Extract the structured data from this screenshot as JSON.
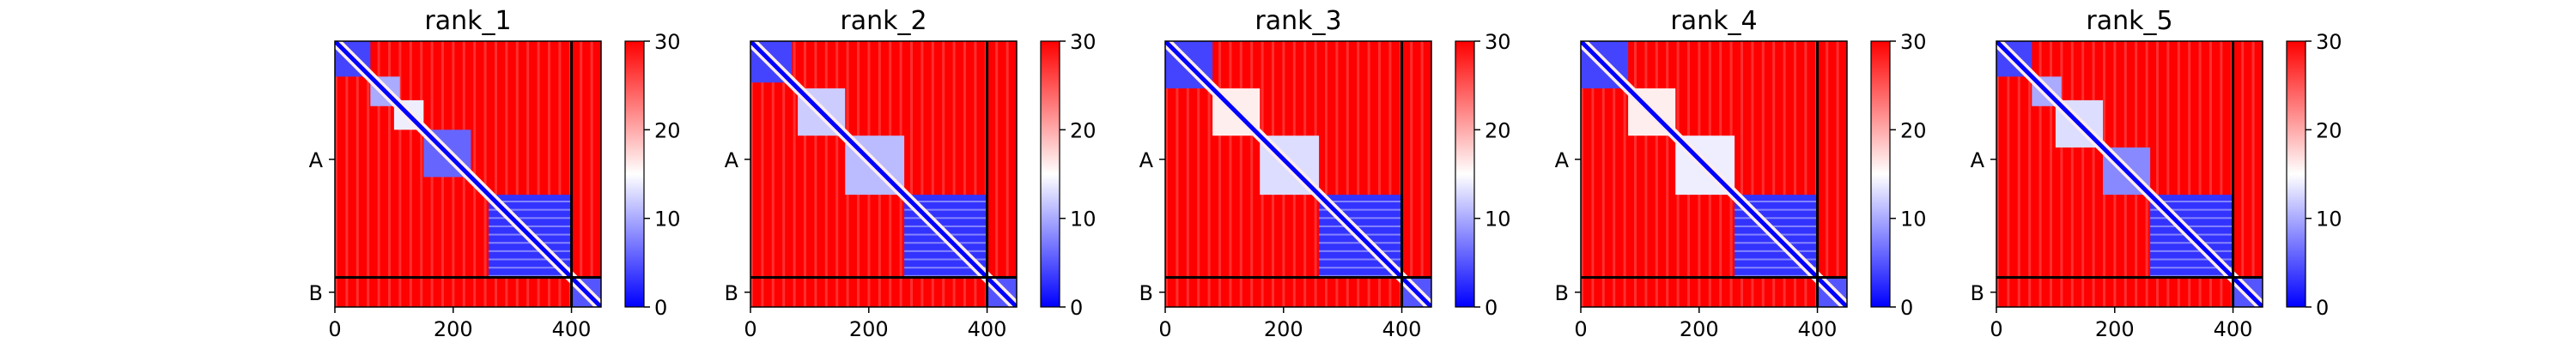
{
  "chart_data": [
    {
      "type": "heatmap",
      "title": "rank_1",
      "xlim": [
        0,
        450
      ],
      "x_ticks": [
        0,
        200,
        400
      ],
      "y_tick_labels": [
        "A",
        "B"
      ],
      "chain_boundary": 400,
      "colorbar": {
        "range": [
          0,
          30
        ],
        "ticks": [
          0,
          10,
          20,
          30
        ],
        "colormap": [
          "#0000ff",
          "#ffffff",
          "#ff0000"
        ]
      },
      "blocks": [
        {
          "i0": 0,
          "i1": 60,
          "value": 4
        },
        {
          "i0": 60,
          "i1": 110,
          "value": 10
        },
        {
          "i0": 100,
          "i1": 150,
          "value": 14
        },
        {
          "i0": 150,
          "i1": 230,
          "value": 6
        },
        {
          "i0": 260,
          "i1": 400,
          "value": 3
        },
        {
          "i0": 400,
          "i1": 450,
          "value": 5
        }
      ]
    },
    {
      "type": "heatmap",
      "title": "rank_2",
      "xlim": [
        0,
        450
      ],
      "x_ticks": [
        0,
        200,
        400
      ],
      "y_tick_labels": [
        "A",
        "B"
      ],
      "chain_boundary": 400,
      "colorbar": {
        "range": [
          0,
          30
        ],
        "ticks": [
          0,
          10,
          20,
          30
        ],
        "colormap": [
          "#0000ff",
          "#ffffff",
          "#ff0000"
        ]
      },
      "blocks": [
        {
          "i0": 0,
          "i1": 70,
          "value": 4
        },
        {
          "i0": 80,
          "i1": 160,
          "value": 12
        },
        {
          "i0": 160,
          "i1": 260,
          "value": 11
        },
        {
          "i0": 260,
          "i1": 400,
          "value": 3
        },
        {
          "i0": 400,
          "i1": 450,
          "value": 5
        }
      ]
    },
    {
      "type": "heatmap",
      "title": "rank_3",
      "xlim": [
        0,
        450
      ],
      "x_ticks": [
        0,
        200,
        400
      ],
      "y_tick_labels": [
        "A",
        "B"
      ],
      "chain_boundary": 400,
      "colorbar": {
        "range": [
          0,
          30
        ],
        "ticks": [
          0,
          10,
          20,
          30
        ],
        "colormap": [
          "#0000ff",
          "#ffffff",
          "#ff0000"
        ]
      },
      "blocks": [
        {
          "i0": 0,
          "i1": 80,
          "value": 4
        },
        {
          "i0": 80,
          "i1": 160,
          "value": 16
        },
        {
          "i0": 160,
          "i1": 260,
          "value": 13
        },
        {
          "i0": 260,
          "i1": 400,
          "value": 3
        },
        {
          "i0": 400,
          "i1": 450,
          "value": 5
        }
      ]
    },
    {
      "type": "heatmap",
      "title": "rank_4",
      "xlim": [
        0,
        450
      ],
      "x_ticks": [
        0,
        200,
        400
      ],
      "y_tick_labels": [
        "A",
        "B"
      ],
      "chain_boundary": 400,
      "colorbar": {
        "range": [
          0,
          30
        ],
        "ticks": [
          0,
          10,
          20,
          30
        ],
        "colormap": [
          "#0000ff",
          "#ffffff",
          "#ff0000"
        ]
      },
      "blocks": [
        {
          "i0": 0,
          "i1": 80,
          "value": 4
        },
        {
          "i0": 80,
          "i1": 160,
          "value": 16
        },
        {
          "i0": 160,
          "i1": 260,
          "value": 14
        },
        {
          "i0": 260,
          "i1": 400,
          "value": 3
        },
        {
          "i0": 400,
          "i1": 450,
          "value": 5
        }
      ]
    },
    {
      "type": "heatmap",
      "title": "rank_5",
      "xlim": [
        0,
        450
      ],
      "x_ticks": [
        0,
        200,
        400
      ],
      "y_tick_labels": [
        "A",
        "B"
      ],
      "chain_boundary": 400,
      "colorbar": {
        "range": [
          0,
          30
        ],
        "ticks": [
          0,
          10,
          20,
          30
        ],
        "colormap": [
          "#0000ff",
          "#ffffff",
          "#ff0000"
        ]
      },
      "blocks": [
        {
          "i0": 0,
          "i1": 60,
          "value": 4
        },
        {
          "i0": 60,
          "i1": 110,
          "value": 10
        },
        {
          "i0": 100,
          "i1": 180,
          "value": 13
        },
        {
          "i0": 180,
          "i1": 260,
          "value": 8
        },
        {
          "i0": 260,
          "i1": 400,
          "value": 3
        },
        {
          "i0": 400,
          "i1": 450,
          "value": 5
        }
      ]
    }
  ]
}
